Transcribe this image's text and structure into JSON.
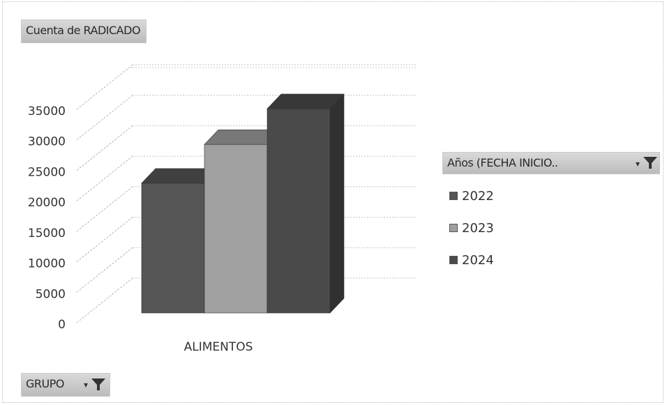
{
  "chart_data": {
    "type": "bar",
    "title": "",
    "value_field_label": "Cuenta de RADICADO",
    "categories": [
      "ALIMENTOS"
    ],
    "series": [
      {
        "name": "2022",
        "values": [
          21800
        ],
        "color": "#555555"
      },
      {
        "name": "2023",
        "values": [
          28300
        ],
        "color": "#a0a0a0"
      },
      {
        "name": "2024",
        "values": [
          34300
        ],
        "color": "#4a4a4a"
      }
    ],
    "ylim": [
      0,
      35000
    ],
    "y_ticks": [
      "35000",
      "30000",
      "25000",
      "20000",
      "15000",
      "10000",
      "5000",
      "0"
    ],
    "grid": true,
    "legend_position": "right",
    "legend_title": "Años (FECHA INICIO..",
    "three_d": true
  },
  "group_field_label": "GRUPO",
  "icons": {
    "filter": "filter-icon",
    "dropdown": "dropdown-arrow-icon"
  }
}
